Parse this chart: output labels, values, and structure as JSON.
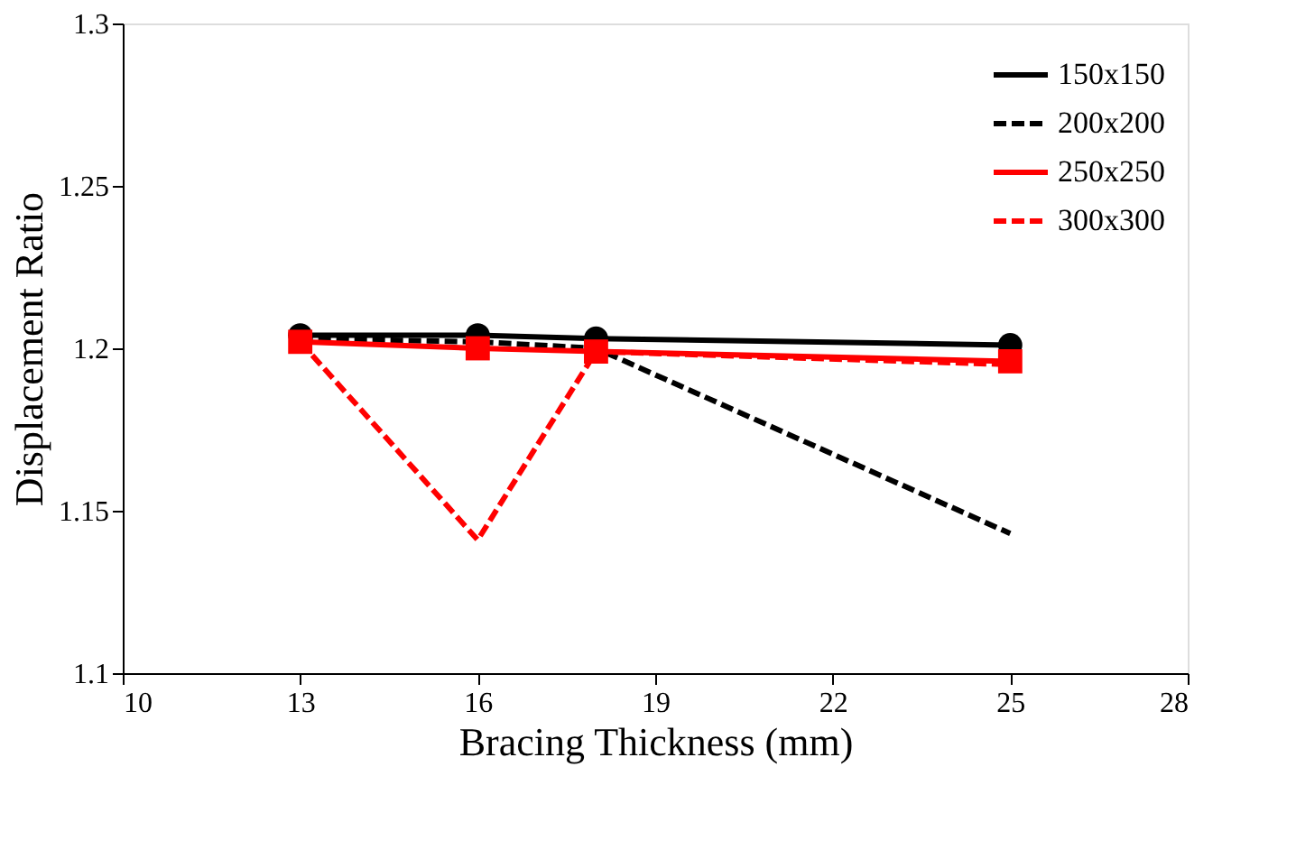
{
  "chart_data": {
    "type": "line",
    "xlabel": "Bracing Thickness (mm)",
    "ylabel": "Displacement Ratio",
    "xlim": [
      10,
      28
    ],
    "xticks": [
      10,
      13,
      16,
      19,
      22,
      25,
      28
    ],
    "ylim": [
      1.1,
      1.3
    ],
    "yticks": [
      1.1,
      1.15,
      1.2,
      1.25,
      1.3
    ],
    "grid": false,
    "legend": "top right",
    "x": [
      13,
      16,
      18,
      25
    ],
    "series": [
      {
        "name": "150x150",
        "color": "#000000",
        "marker": "circle",
        "line_style": "solid",
        "values": [
          1.204,
          1.204,
          1.203,
          1.201
        ]
      },
      {
        "name": "200x200",
        "color": "#000000",
        "marker": "none",
        "line_style": "dashed",
        "values": [
          1.203,
          1.202,
          1.2,
          1.143
        ]
      },
      {
        "name": "250x250",
        "color": "#ff0000",
        "marker": "square",
        "line_style": "solid",
        "values": [
          1.202,
          1.2,
          1.199,
          1.196
        ]
      },
      {
        "name": "300x300",
        "color": "#ff0000",
        "marker": "none",
        "line_style": "dashed",
        "values": [
          1.202,
          1.141,
          1.199,
          1.195
        ]
      }
    ]
  }
}
